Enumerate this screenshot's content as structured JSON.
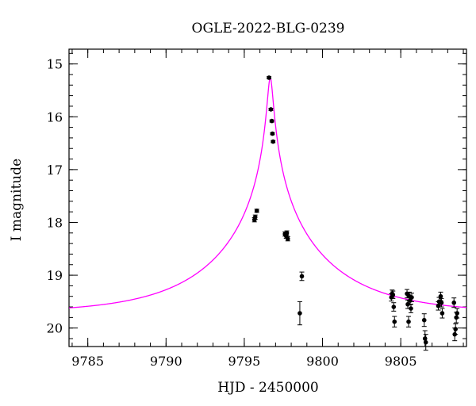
{
  "chart_data": {
    "type": "scatter",
    "title": "OGLE-2022-BLG-0239",
    "xlabel": "HJD - 2450000",
    "ylabel": "I magnitude",
    "xlim": [
      9783.8,
      9809.2
    ],
    "ylim": [
      20.35,
      14.72
    ],
    "y_inverted": true,
    "x_ticks": [
      9785,
      9790,
      9795,
      9800,
      9805
    ],
    "y_ticks": [
      15,
      16,
      17,
      18,
      19,
      20
    ],
    "x_minor_step": 1,
    "y_minor_step": 0.2,
    "grid": false,
    "model_color": "#ff00ff",
    "point_color": "#000000",
    "model": {
      "t0": 9796.66,
      "peak_mag": 15.26,
      "baseline_mag": 19.72,
      "tE": 6.5,
      "u0": 0.0255
    },
    "points": [
      {
        "x": 9795.65,
        "y": 17.95,
        "err": 0.04
      },
      {
        "x": 9795.7,
        "y": 17.9,
        "err": 0.04
      },
      {
        "x": 9795.8,
        "y": 17.78,
        "err": 0.03
      },
      {
        "x": 9796.58,
        "y": 15.26,
        "err": 0.02
      },
      {
        "x": 9796.7,
        "y": 15.86,
        "err": 0.02
      },
      {
        "x": 9796.76,
        "y": 16.08,
        "err": 0.02
      },
      {
        "x": 9796.8,
        "y": 16.32,
        "err": 0.02
      },
      {
        "x": 9796.84,
        "y": 16.47,
        "err": 0.02
      },
      {
        "x": 9797.6,
        "y": 18.22,
        "err": 0.04
      },
      {
        "x": 9797.68,
        "y": 18.26,
        "err": 0.04
      },
      {
        "x": 9797.72,
        "y": 18.2,
        "err": 0.04
      },
      {
        "x": 9797.78,
        "y": 18.31,
        "err": 0.04
      },
      {
        "x": 9798.55,
        "y": 19.72,
        "err": 0.22
      },
      {
        "x": 9798.68,
        "y": 19.02,
        "err": 0.08
      },
      {
        "x": 9804.4,
        "y": 19.42,
        "err": 0.07
      },
      {
        "x": 9804.45,
        "y": 19.35,
        "err": 0.07
      },
      {
        "x": 9804.5,
        "y": 19.37,
        "err": 0.07
      },
      {
        "x": 9804.55,
        "y": 19.6,
        "err": 0.08
      },
      {
        "x": 9804.6,
        "y": 19.88,
        "err": 0.1
      },
      {
        "x": 9805.4,
        "y": 19.35,
        "err": 0.08
      },
      {
        "x": 9805.45,
        "y": 19.55,
        "err": 0.08
      },
      {
        "x": 9805.5,
        "y": 19.88,
        "err": 0.1
      },
      {
        "x": 9805.55,
        "y": 19.4,
        "err": 0.08
      },
      {
        "x": 9805.6,
        "y": 19.48,
        "err": 0.08
      },
      {
        "x": 9805.65,
        "y": 19.63,
        "err": 0.08
      },
      {
        "x": 9805.7,
        "y": 19.42,
        "err": 0.08
      },
      {
        "x": 9806.5,
        "y": 19.85,
        "err": 0.12
      },
      {
        "x": 9806.55,
        "y": 20.2,
        "err": 0.15
      },
      {
        "x": 9806.6,
        "y": 20.27,
        "err": 0.15
      },
      {
        "x": 9807.4,
        "y": 19.58,
        "err": 0.08
      },
      {
        "x": 9807.45,
        "y": 19.5,
        "err": 0.08
      },
      {
        "x": 9807.55,
        "y": 19.4,
        "err": 0.08
      },
      {
        "x": 9807.6,
        "y": 19.52,
        "err": 0.08
      },
      {
        "x": 9807.65,
        "y": 19.72,
        "err": 0.09
      },
      {
        "x": 9808.4,
        "y": 19.52,
        "err": 0.09
      },
      {
        "x": 9808.45,
        "y": 20.12,
        "err": 0.12
      },
      {
        "x": 9808.5,
        "y": 20.02,
        "err": 0.1
      },
      {
        "x": 9808.55,
        "y": 19.8,
        "err": 0.1
      },
      {
        "x": 9808.6,
        "y": 19.72,
        "err": 0.09
      }
    ]
  }
}
